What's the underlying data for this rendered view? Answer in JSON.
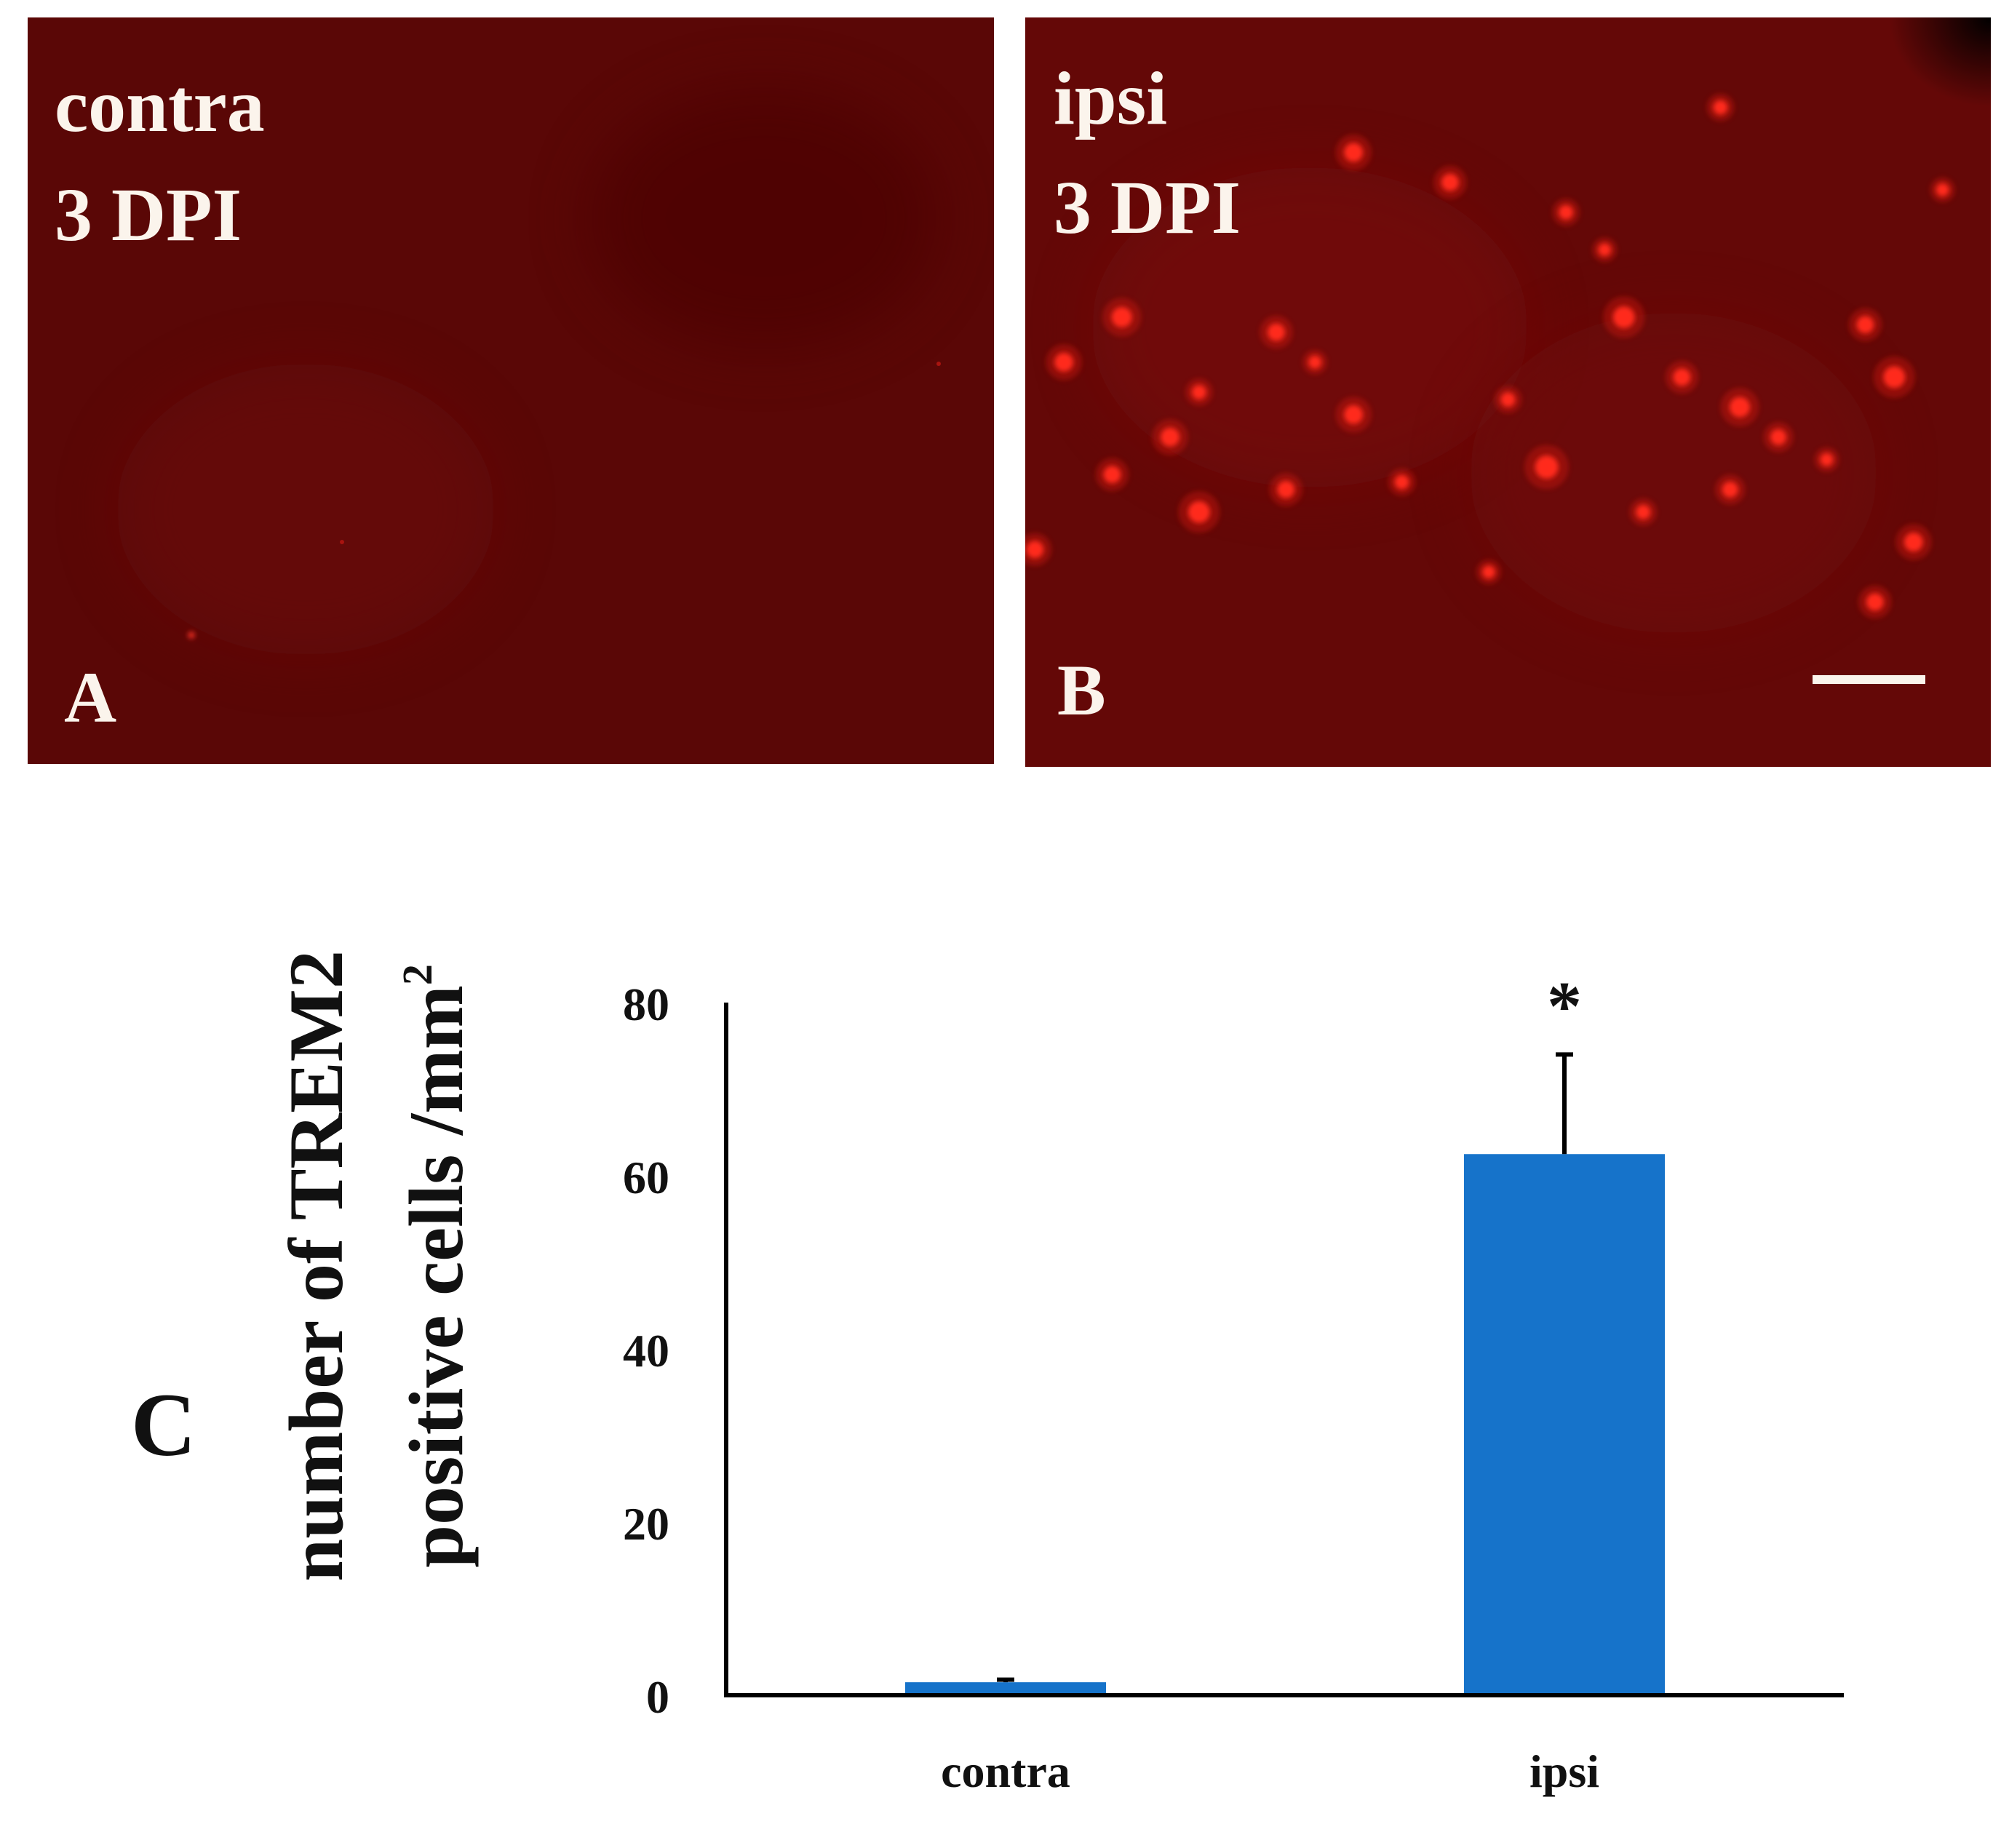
{
  "panels": [
    {
      "id": "A",
      "letter": "A",
      "line1": "contra",
      "line2": "3 DPI",
      "background": "#5a0706",
      "cells": []
    },
    {
      "id": "B",
      "letter": "B",
      "line1": "ipsi",
      "line2": "3 DPI",
      "background": "#640807",
      "scale_bar": true,
      "cells": [
        [
          0.34,
          0.18,
          13
        ],
        [
          0.72,
          0.12,
          10
        ],
        [
          0.44,
          0.22,
          12
        ],
        [
          0.56,
          0.26,
          10
        ],
        [
          0.1,
          0.4,
          14
        ],
        [
          0.26,
          0.42,
          12
        ],
        [
          0.62,
          0.4,
          15
        ],
        [
          0.87,
          0.41,
          12
        ],
        [
          0.04,
          0.46,
          13
        ],
        [
          0.18,
          0.5,
          10
        ],
        [
          0.34,
          0.53,
          13
        ],
        [
          0.5,
          0.51,
          10
        ],
        [
          0.68,
          0.48,
          12
        ],
        [
          0.74,
          0.52,
          14
        ],
        [
          0.9,
          0.48,
          15
        ],
        [
          0.15,
          0.56,
          13
        ],
        [
          0.78,
          0.56,
          11
        ],
        [
          0.54,
          0.6,
          16
        ],
        [
          0.27,
          0.63,
          12
        ],
        [
          0.39,
          0.62,
          10
        ],
        [
          0.09,
          0.61,
          12
        ],
        [
          0.73,
          0.63,
          11
        ],
        [
          0.92,
          0.7,
          13
        ],
        [
          0.88,
          0.78,
          12
        ],
        [
          0.18,
          0.66,
          15
        ],
        [
          0.64,
          0.66,
          10
        ],
        [
          0.01,
          0.71,
          12
        ],
        [
          0.48,
          0.74,
          9
        ],
        [
          0.95,
          0.23,
          9
        ],
        [
          0.83,
          0.59,
          9
        ],
        [
          0.3,
          0.46,
          9
        ],
        [
          0.6,
          0.31,
          9
        ]
      ]
    }
  ],
  "panel_c_label": "C",
  "chart_data": {
    "type": "bar",
    "categories": [
      "contra",
      "ipsi"
    ],
    "values": [
      1.5,
      62.5
    ],
    "error": [
      0.3,
      11.5
    ],
    "ylim": [
      0,
      80
    ],
    "yticks": [
      0,
      20,
      40,
      60,
      80
    ],
    "ylabel_line1": "number of TREM2",
    "ylabel_line2_text": "positive cells /mm",
    "ylabel_line2_sup": "2",
    "xlabel": "",
    "title": "",
    "bar_color": "#1673ca",
    "significance": [
      {
        "category": "ipsi",
        "text": "*"
      }
    ],
    "grid": false
  }
}
